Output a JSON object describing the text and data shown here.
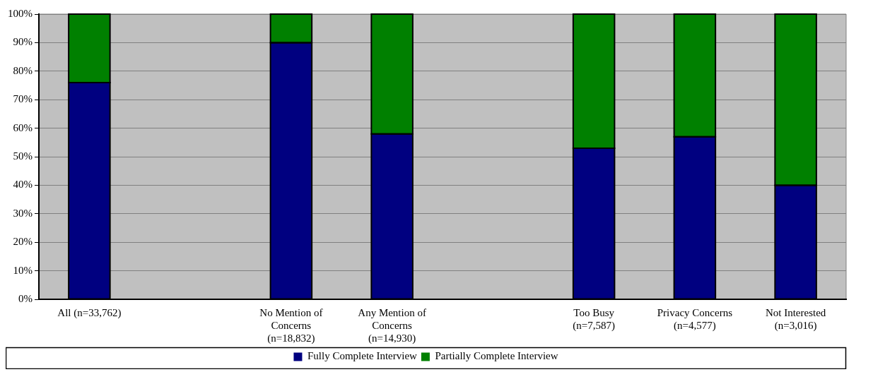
{
  "chart_data": {
    "type": "bar",
    "stacked": true,
    "categories": [
      "All (n=33,762)",
      null,
      "No Mention of Concerns (n=18,832)",
      "Any Mention of Concerns (n=14,930)",
      null,
      "Too Busy (n=7,587)",
      "Privacy Concerns (n=4,577)",
      "Not Interested (n=3,016)"
    ],
    "series": [
      {
        "name": "Fully Complete Interview",
        "color": "#000080",
        "values": [
          76,
          null,
          90,
          58,
          null,
          53,
          57,
          40
        ]
      },
      {
        "name": "Partially Complete Interview",
        "color": "#008000",
        "values": [
          24,
          null,
          10,
          42,
          null,
          47,
          43,
          60
        ]
      }
    ],
    "ylim": [
      0,
      100
    ],
    "yticks": [
      {
        "value": 0,
        "label": "0%"
      },
      {
        "value": 10,
        "label": "10%"
      },
      {
        "value": 20,
        "label": "20%"
      },
      {
        "value": 30,
        "label": "30%"
      },
      {
        "value": 40,
        "label": "40%"
      },
      {
        "value": 50,
        "label": "50%"
      },
      {
        "value": 60,
        "label": "60%"
      },
      {
        "value": 70,
        "label": "70%"
      },
      {
        "value": 80,
        "label": "80%"
      },
      {
        "value": 90,
        "label": "90%"
      },
      {
        "value": 100,
        "label": "100%"
      }
    ],
    "grid": "y",
    "legend": "bottom"
  }
}
